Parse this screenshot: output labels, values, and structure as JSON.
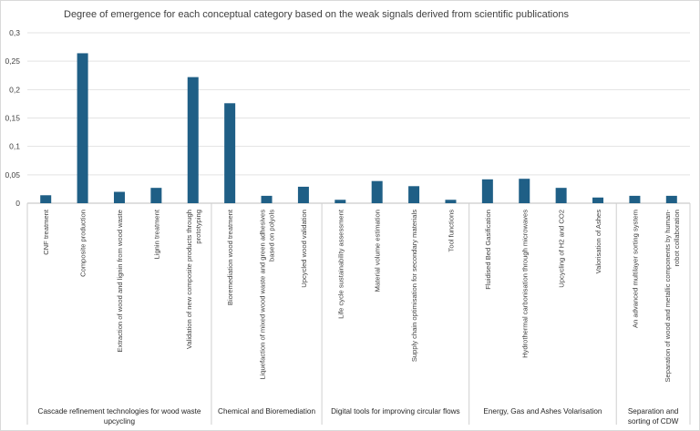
{
  "chart_data": {
    "type": "bar",
    "title": "Degree of emergence for each conceptual category based on the weak signals derived from scientific publications",
    "xlabel": "",
    "ylabel": "",
    "ylim": [
      0,
      0.3
    ],
    "yticks": [
      "0",
      "0,05",
      "0,1",
      "0,15",
      "0,2",
      "0,25",
      "0,3"
    ],
    "grid": true,
    "legend": "none",
    "bar_color": "#1f5f86",
    "groups": [
      {
        "label": "Cascade refinement technologies for wood waste upcycling",
        "label_lines": [
          "Cascade refinement technologies for wood waste",
          "upcycling"
        ],
        "categories": [
          "CNF treatment",
          "Composite production",
          "Extraction of wood and lignin from wood waste",
          "Lignin treatment",
          "Validation of new composite products through prototyping"
        ],
        "category_lines": [
          [
            "CNF treatment"
          ],
          [
            "Composite production"
          ],
          [
            "Extraction of wood and lignin from wood waste"
          ],
          [
            "Lignin treatment"
          ],
          [
            "Validation of new composite products through",
            "prototyping"
          ]
        ],
        "values": [
          0.014,
          0.264,
          0.02,
          0.027,
          0.222
        ]
      },
      {
        "label": "Chemical and Bioremediation",
        "label_lines": [
          "Chemical and Bioremediation"
        ],
        "categories": [
          "Bioremediation wood treatment",
          "Liquefaction of mixed wood waste and green adhesives based on polyols",
          "Upcycled wood validation"
        ],
        "category_lines": [
          [
            "Bioremediation wood treatment"
          ],
          [
            "Liquefaction of mixed wood waste and green adhesives",
            "based on polyols"
          ],
          [
            "Upcycled wood validation"
          ]
        ],
        "values": [
          0.176,
          0.013,
          0.029
        ]
      },
      {
        "label": "Digital tools for improving circular flows",
        "label_lines": [
          "Digital tools for improving circular flows"
        ],
        "categories": [
          "Life cycle sustainability assessment",
          "Material volume estimation",
          "Supply chain optimisation for secondary materials",
          "Tool functions"
        ],
        "category_lines": [
          [
            "Life cycle sustainability assessment"
          ],
          [
            "Material volume estimation"
          ],
          [
            "Supply chain optimisation for secondary materials"
          ],
          [
            "Tool functions"
          ]
        ],
        "values": [
          0.006,
          0.039,
          0.03,
          0.006
        ]
      },
      {
        "label": "Energy, Gas and Ashes Volarisation",
        "label_lines": [
          "Energy, Gas and Ashes Volarisation"
        ],
        "categories": [
          "Fluidised Bed Gasification",
          "Hydrothermal carbonisation through microwaves",
          "Upcycling of H2 and CO2",
          "Valorisation of Ashes"
        ],
        "category_lines": [
          [
            "Fluidised Bed Gasification"
          ],
          [
            "Hydrothermal carbonisation through microwaves"
          ],
          [
            "Upcycling of H2 and CO2"
          ],
          [
            "Valorisation of Ashes"
          ]
        ],
        "values": [
          0.042,
          0.043,
          0.027,
          0.01
        ]
      },
      {
        "label": "Separation and sorting of CDW",
        "label_lines": [
          "Separation and",
          "sorting of CDW"
        ],
        "categories": [
          "An advanced multilayer sorting system",
          "Separation of wood and metallic components by human-robot collaboration"
        ],
        "category_lines": [
          [
            "An advanced multilayer sorting system"
          ],
          [
            "Separation of wood and metallic components by human-",
            "robot collaboration"
          ]
        ],
        "values": [
          0.013,
          0.013
        ]
      }
    ]
  }
}
